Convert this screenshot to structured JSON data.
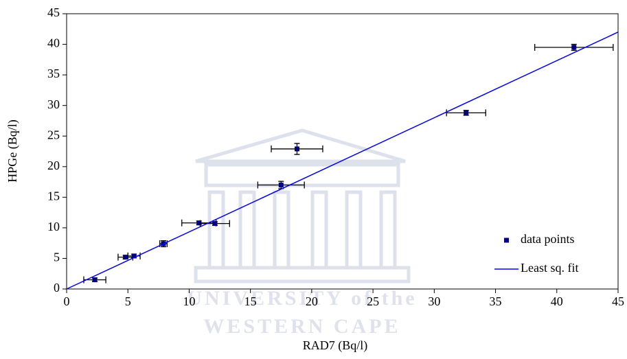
{
  "chart_data": {
    "type": "scatter",
    "x_label": "RAD7 (Bq/l)",
    "y_label": "HPGe (Bq/l)",
    "watermark": [
      "UNIVERSITY of the",
      "WESTERN CAPE"
    ],
    "xlim": [
      0,
      45
    ],
    "ylim": [
      0,
      45
    ],
    "xticks": [
      0,
      5,
      10,
      15,
      20,
      25,
      30,
      35,
      40,
      45
    ],
    "yticks": [
      0,
      5,
      10,
      15,
      20,
      25,
      30,
      35,
      40,
      45
    ],
    "legend": "lower right",
    "series": [
      {
        "name": "data points",
        "color": "#000080",
        "x": [
          2.3,
          4.8,
          5.5,
          7.9,
          10.8,
          12.1,
          17.5,
          18.8,
          32.6,
          41.4
        ],
        "y": [
          1.5,
          5.2,
          5.4,
          7.4,
          10.8,
          10.7,
          17.0,
          22.9,
          28.8,
          39.5
        ],
        "xerr": [
          0.9,
          0.6,
          0.5,
          0.3,
          1.4,
          1.2,
          1.9,
          2.1,
          1.6,
          3.2
        ],
        "yerr": [
          0.3,
          0.3,
          0.3,
          0.5,
          0.3,
          0.3,
          0.6,
          0.9,
          0.4,
          0.5
        ]
      },
      {
        "name": "Least sq. fit",
        "color": "#0000ff",
        "type": "line",
        "x": [
          0,
          45
        ],
        "y": [
          0,
          42
        ]
      }
    ]
  }
}
